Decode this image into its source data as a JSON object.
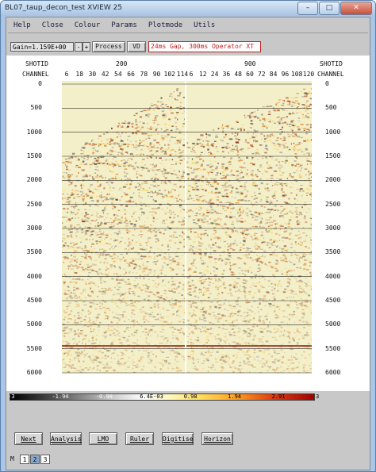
{
  "window": {
    "title": "BL07_taup_decon_test XVIEW 25"
  },
  "menu": [
    "Help",
    "Close",
    "Colour",
    "Params",
    "Plotmode",
    "Utils"
  ],
  "toolbar": {
    "gain_value": "Gain=1.159E+00",
    "spin_down": "-",
    "spin_up": "+",
    "process_label": "Process",
    "vd_label": "VD",
    "status_text": "24ms Gap, 300ms Operator XT"
  },
  "axes": {
    "shotid_label": "SHOTID",
    "channel_label": "CHANNEL",
    "panel1_shotid": "200",
    "panel2_shotid": "900",
    "panel1_channels": [
      "6",
      "18",
      "30",
      "42",
      "54",
      "66",
      "78",
      "90",
      "102",
      "114"
    ],
    "panel2_channels": [
      "6",
      "12",
      "24",
      "36",
      "48",
      "60",
      "72",
      "84",
      "96",
      "108",
      "120"
    ],
    "time_ticks": [
      "0",
      "500",
      "1000",
      "1500",
      "2000",
      "2500",
      "3000",
      "3500",
      "4000",
      "4500",
      "5000",
      "5500",
      "6000"
    ]
  },
  "colorbar": {
    "ticks": [
      "-3",
      "-1.94",
      "-0.98",
      "6.4E-03",
      "0.98",
      "1.94",
      "2.91",
      "3"
    ]
  },
  "buttons": [
    "Next",
    "Analysis",
    "LMO",
    "Ruler",
    "Digitise",
    "Horizon"
  ],
  "pages": {
    "mode": "M",
    "items": [
      "1",
      "2",
      "3"
    ],
    "active": "2"
  }
}
